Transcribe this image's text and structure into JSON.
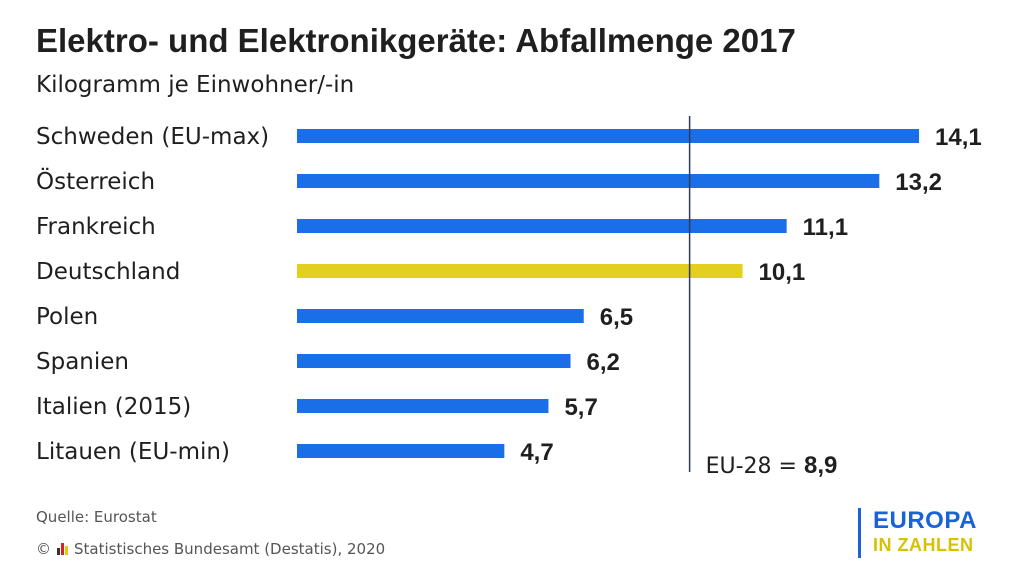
{
  "header": {
    "title": "Elektro- und Elektronikgeräte: Abfallmenge 2017",
    "subtitle": "Kilogramm je Einwohner/-in"
  },
  "chart_data": {
    "type": "bar",
    "orientation": "horizontal",
    "categories": [
      "Schweden (EU-max)",
      "Österreich",
      "Frankreich",
      "Deutschland",
      "Polen",
      "Spanien",
      "Italien (2015)",
      "Litauen (EU-min)"
    ],
    "values": [
      14.1,
      13.2,
      11.1,
      10.1,
      6.5,
      6.2,
      5.7,
      4.7
    ],
    "value_labels": [
      "14,1",
      "13,2",
      "11,1",
      "10,1",
      "6,5",
      "6,2",
      "5,7",
      "4,7"
    ],
    "highlight": "Deutschland",
    "reference_line": {
      "label_prefix": "EU-28 =",
      "label_value": "8,9",
      "value": 8.9
    },
    "xlim": [
      0,
      14.1
    ],
    "grid": false,
    "colors": {
      "bar": "#1a6ee8",
      "highlight": "#e3cf1f",
      "reference_line": "#2a3d5a",
      "text": "#1f1f1f"
    }
  },
  "footer": {
    "source": "Quelle: Eurostat",
    "copyright_symbol": "©",
    "copyright_text": "Statistisches Bundesamt (Destatis), 2020"
  },
  "logo": {
    "line1": "EUROPA",
    "line2": "IN ZAHLEN",
    "colors": {
      "line1": "#1a63d6",
      "line2": "#d8c200"
    }
  }
}
